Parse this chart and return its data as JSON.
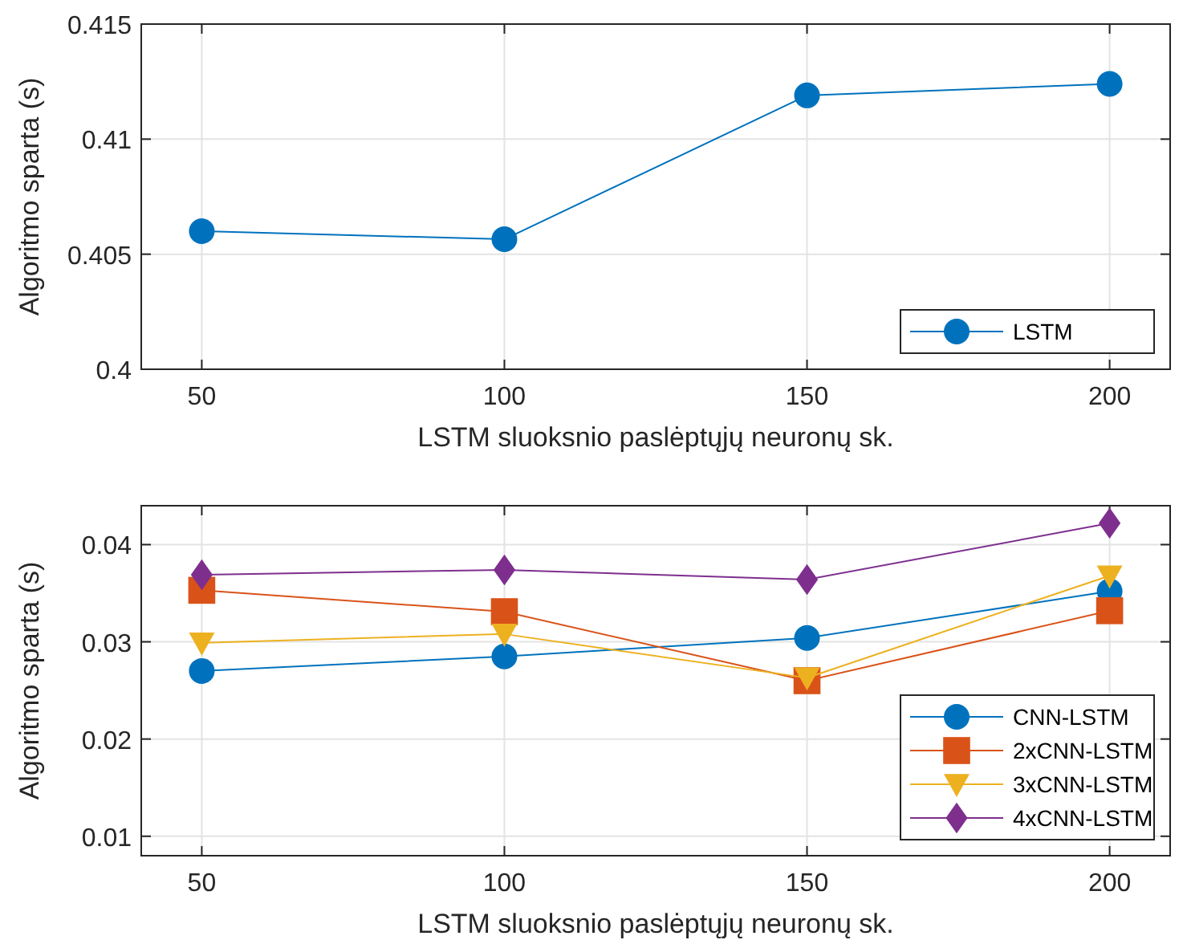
{
  "chart_data": [
    {
      "type": "line",
      "xlabel": "LSTM sluoksnio paslėptųjų neuronų sk.",
      "ylabel": "Algoritmo sparta (s)",
      "x": [
        50,
        100,
        150,
        200
      ],
      "xlim": [
        40,
        210
      ],
      "xticks": [
        50,
        100,
        150,
        200
      ],
      "ylim": [
        0.4,
        0.415
      ],
      "yticks": [
        0.4,
        0.405,
        0.41,
        0.415
      ],
      "grid": true,
      "legend": "bottom right",
      "series": [
        {
          "name": "LSTM",
          "color": "#0072bd",
          "marker": "circle",
          "values": [
            0.406,
            0.40565,
            0.4119,
            0.4124
          ]
        }
      ]
    },
    {
      "type": "line",
      "xlabel": "LSTM sluoksnio paslėptųjų neuronų sk.",
      "ylabel": "Algoritmo sparta (s)",
      "x": [
        50,
        100,
        150,
        200
      ],
      "xlim": [
        40,
        210
      ],
      "xticks": [
        50,
        100,
        150,
        200
      ],
      "ylim": [
        0.008,
        0.044
      ],
      "yticks": [
        0.01,
        0.02,
        0.03,
        0.04
      ],
      "grid": true,
      "legend": "bottom right",
      "series": [
        {
          "name": "CNN-LSTM",
          "color": "#0072bd",
          "marker": "circle",
          "values": [
            0.027,
            0.0285,
            0.0304,
            0.0352
          ]
        },
        {
          "name": "2xCNN-LSTM",
          "color": "#d95319",
          "marker": "square",
          "values": [
            0.0353,
            0.0331,
            0.026,
            0.0332
          ]
        },
        {
          "name": "3xCNN-LSTM",
          "color": "#edb120",
          "marker": "triangle",
          "values": [
            0.0299,
            0.0308,
            0.0263,
            0.0368
          ]
        },
        {
          "name": "4xCNN-LSTM",
          "color": "#7e2f8e",
          "marker": "diamond",
          "values": [
            0.0369,
            0.0374,
            0.0364,
            0.0422
          ]
        }
      ]
    }
  ]
}
